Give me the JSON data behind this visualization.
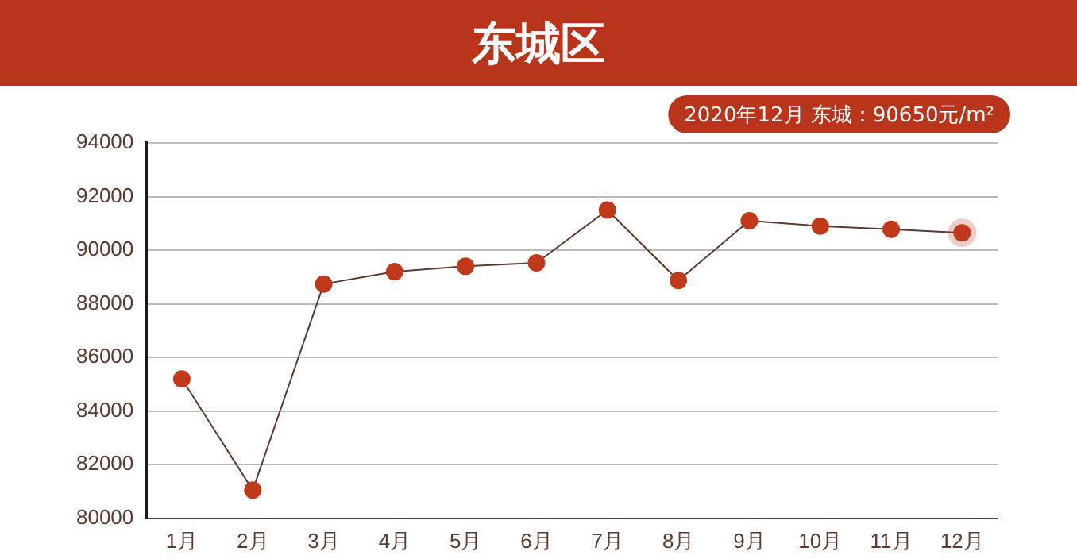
{
  "chart_data": {
    "type": "line",
    "title": "东城区",
    "categories": [
      "1月",
      "2月",
      "3月",
      "4月",
      "5月",
      "6月",
      "7月",
      "8月",
      "9月",
      "10月",
      "11月",
      "12月"
    ],
    "series": [
      {
        "color": "#c0391b",
        "values": [
          85200,
          81050,
          88740,
          89200,
          89400,
          89530,
          91500,
          88870,
          91100,
          90900,
          90780,
          90650
        ]
      }
    ],
    "ylim": [
      80000,
      94000
    ],
    "yticks": [
      80000,
      82000,
      84000,
      86000,
      88000,
      90000,
      92000,
      94000
    ],
    "grid": "y",
    "legend": false,
    "marker": "circle",
    "line_style": "solid",
    "annotations": [
      "2020年12月 东城：90650元/m²"
    ]
  }
}
